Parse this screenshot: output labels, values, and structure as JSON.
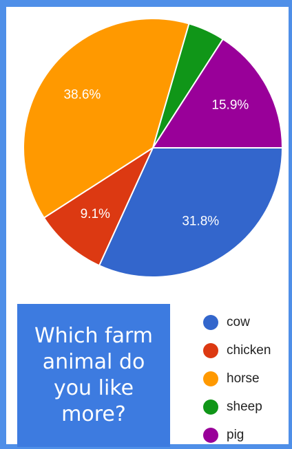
{
  "chart_data": {
    "type": "pie",
    "title": "Which farm animal do you like more?",
    "slices": [
      {
        "label": "cow",
        "percent": 31.8,
        "value_label": "31.8%",
        "color": "#3366cc",
        "text_color": "#ffffff"
      },
      {
        "label": "chicken",
        "percent": 9.1,
        "value_label": "9.1%",
        "color": "#dc3912",
        "text_color": "#ffffff"
      },
      {
        "label": "horse",
        "percent": 38.6,
        "value_label": "38.6%",
        "color": "#ff9900",
        "text_color": "#ffffff"
      },
      {
        "label": "sheep",
        "percent": 4.6,
        "value_label": "",
        "color": "#109618",
        "text_color": "#ffffff"
      },
      {
        "label": "pig",
        "percent": 15.9,
        "value_label": "15.9%",
        "color": "#990099",
        "text_color": "#ffffff"
      }
    ],
    "legend_position": "bottom-right"
  },
  "question": "Which farm animal do you like more?",
  "colors": {
    "background_frame": "#4f8fe8",
    "question_box": "#3d7be0"
  }
}
